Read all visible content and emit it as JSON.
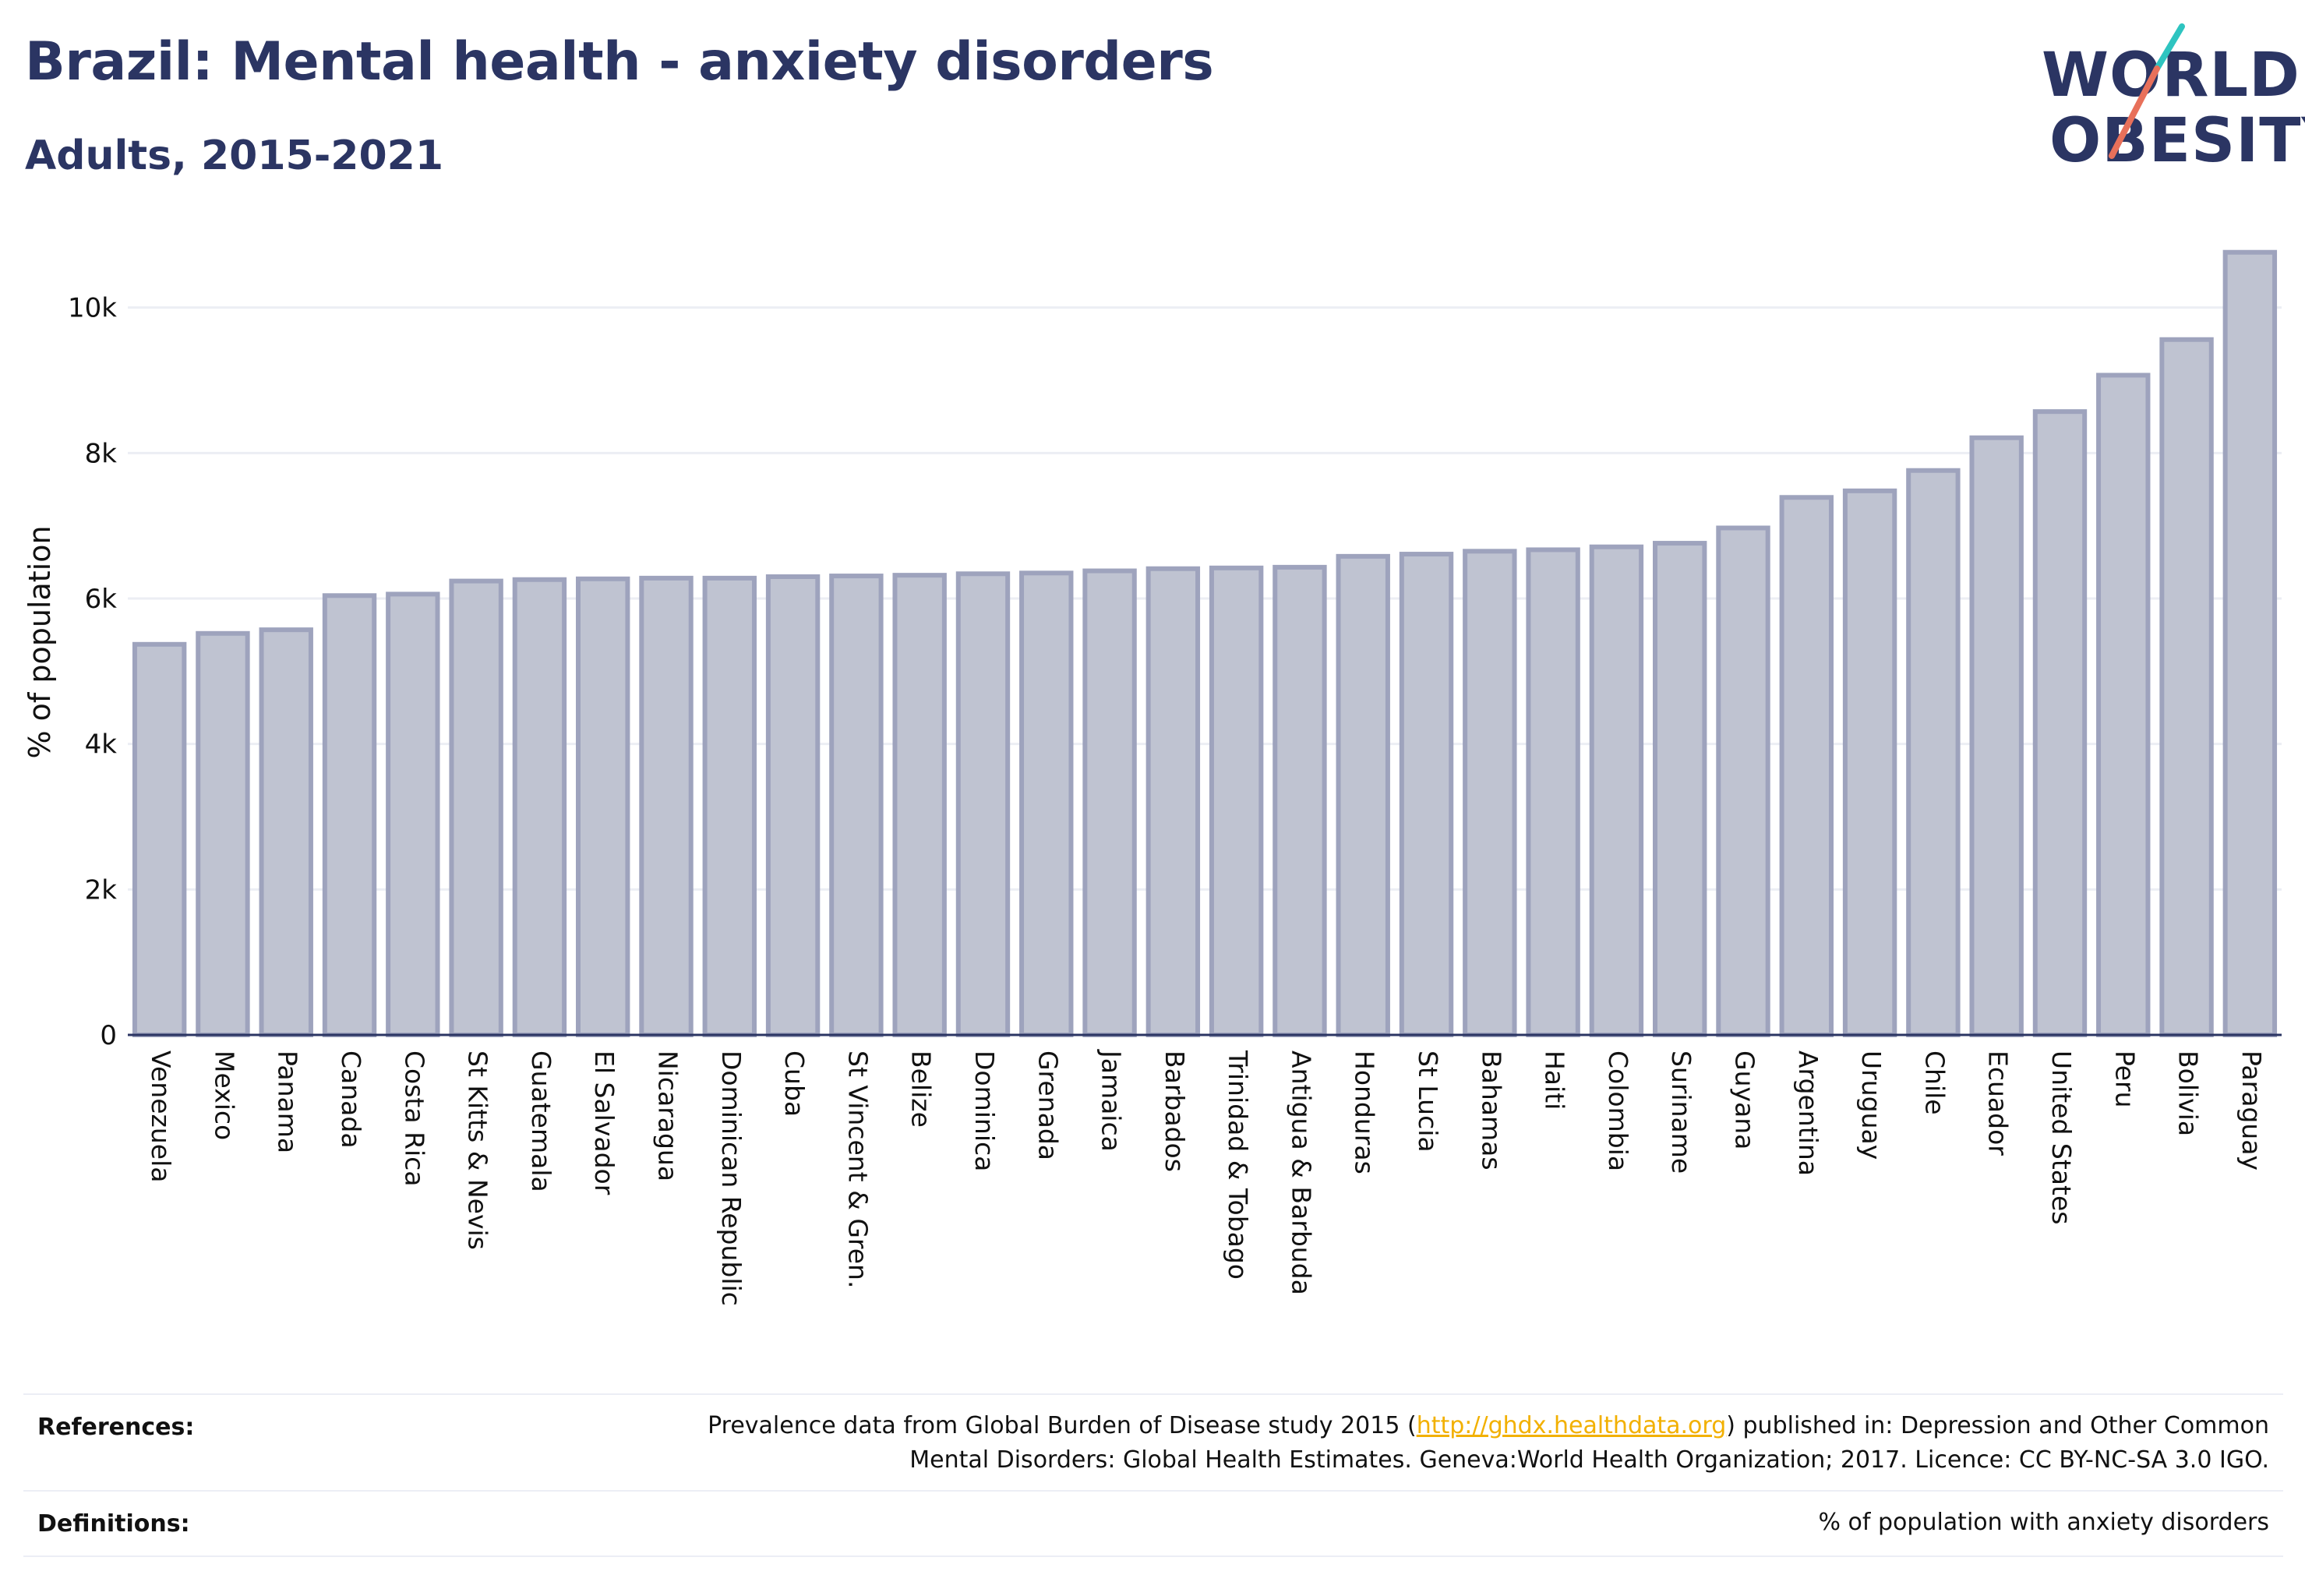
{
  "header": {
    "title": "Brazil: Mental health - anxiety disorders",
    "subtitle": "Adults, 2015-2021"
  },
  "logo": {
    "line1": "WORLD",
    "line2": "OBESITY",
    "slash_colors": [
      "#2ec4c0",
      "#e8705a"
    ]
  },
  "colors": {
    "bar_fill": "#bfc3d1",
    "bar_stroke": "#9ea3bd",
    "grid": "#eceef4",
    "axis": "#2b3563",
    "link": "#f2b000"
  },
  "chart_data": {
    "type": "bar",
    "ylabel": "% of population",
    "ylim": [
      0,
      10800
    ],
    "yticks": [
      0,
      2000,
      4000,
      6000,
      8000,
      10000
    ],
    "ytick_labels": [
      "0",
      "2k",
      "4k",
      "6k",
      "8k",
      "10k"
    ],
    "grid": true,
    "categories": [
      "Venezuela",
      "Mexico",
      "Panama",
      "Canada",
      "Costa Rica",
      "St Kitts & Nevis",
      "Guatemala",
      "El Salvador",
      "Nicaragua",
      "Dominican Republic",
      "Cuba",
      "St Vincent & Gren.",
      "Belize",
      "Dominica",
      "Grenada",
      "Jamaica",
      "Barbados",
      "Trinidad & Tobago",
      "Antigua & Barbuda",
      "Honduras",
      "St Lucia",
      "Bahamas",
      "Haiti",
      "Colombia",
      "Suriname",
      "Guyana",
      "Argentina",
      "Uruguay",
      "Chile",
      "Ecuador",
      "United States",
      "Peru",
      "Bolivia",
      "Paraguay"
    ],
    "values": [
      5370,
      5520,
      5570,
      6040,
      6060,
      6240,
      6260,
      6270,
      6280,
      6280,
      6300,
      6310,
      6320,
      6340,
      6350,
      6380,
      6410,
      6420,
      6430,
      6580,
      6610,
      6650,
      6670,
      6710,
      6760,
      6970,
      7390,
      7480,
      7760,
      8210,
      8570,
      9070,
      9560,
      10760
    ]
  },
  "references": {
    "label": "References:",
    "text_pre": "Prevalence data from Global Burden of Disease study 2015 (",
    "link": "http://ghdx.healthdata.org",
    "text_post": ") published in: Depression and Other Common",
    "line2": "Mental Disorders: Global Health Estimates. Geneva:World Health Organization; 2017. Licence: CC BY-NC-SA 3.0 IGO."
  },
  "definitions": {
    "label": "Definitions:",
    "text": "% of population with anxiety disorders"
  }
}
